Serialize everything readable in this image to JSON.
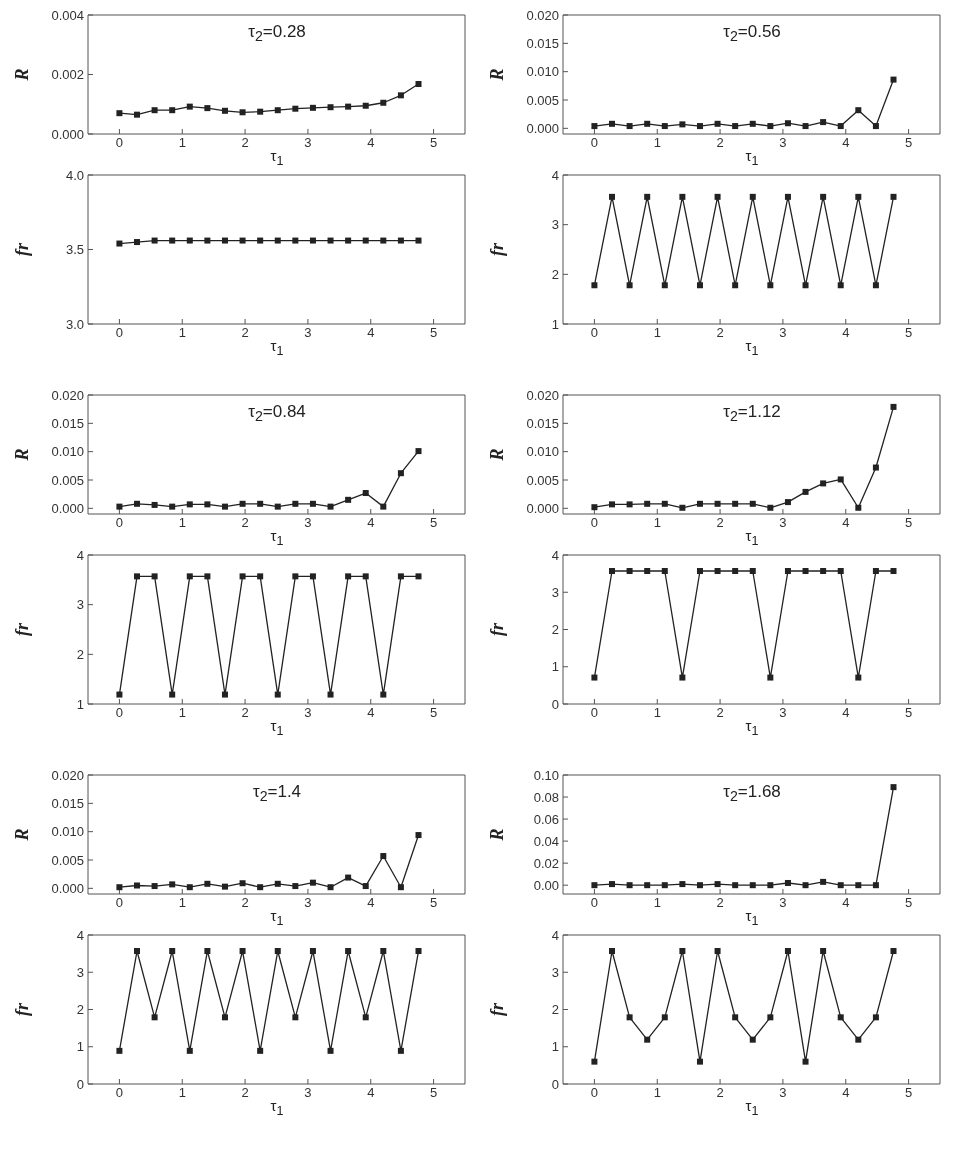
{
  "chart_data": [
    {
      "type": "line",
      "title": "τ$_{2}$=0.28",
      "xlabel": "τ$_{1}$",
      "ylabel": "R",
      "x": [
        0,
        0.28,
        0.56,
        0.84,
        1.12,
        1.4,
        1.68,
        1.96,
        2.24,
        2.52,
        2.8,
        3.08,
        3.36,
        3.64,
        3.92,
        4.2,
        4.48,
        4.76
      ],
      "values": [
        0.0007,
        0.00065,
        0.0008,
        0.0008,
        0.00092,
        0.00087,
        0.00078,
        0.00073,
        0.00075,
        0.0008,
        0.00085,
        0.00088,
        0.0009,
        0.00092,
        0.00095,
        0.00105,
        0.0013,
        0.00168
      ],
      "color": "#222222",
      "marker": "square",
      "line_style": "solid",
      "xlim": [
        -0.5,
        5.5
      ],
      "xticks": [
        0,
        1,
        2,
        3,
        4,
        5
      ],
      "ylim": [
        0,
        0.004
      ],
      "yticks": [
        {
          "value": 0,
          "label": "0.000"
        },
        {
          "value": 0.002,
          "label": "0.002"
        },
        {
          "value": 0.004,
          "label": "0.004"
        }
      ]
    },
    {
      "type": "line",
      "title": "τ$_{2}$=0.56",
      "xlabel": "τ$_{1}$",
      "ylabel": "R",
      "x": [
        0,
        0.28,
        0.56,
        0.84,
        1.12,
        1.4,
        1.68,
        1.96,
        2.24,
        2.52,
        2.8,
        3.08,
        3.36,
        3.64,
        3.92,
        4.2,
        4.48,
        4.76
      ],
      "values": [
        0.0004,
        0.0008,
        0.0004,
        0.0008,
        0.0004,
        0.0007,
        0.0004,
        0.0008,
        0.0004,
        0.0008,
        0.0004,
        0.0009,
        0.0004,
        0.0011,
        0.0004,
        0.0032,
        0.0004,
        0.0086
      ],
      "color": "#222222",
      "marker": "square",
      "line_style": "solid",
      "xlim": [
        -0.5,
        5.5
      ],
      "xticks": [
        0,
        1,
        2,
        3,
        4,
        5
      ],
      "ylim": [
        -0.001,
        0.02
      ],
      "yticks": [
        {
          "value": 0,
          "label": "0.000"
        },
        {
          "value": 0.005,
          "label": "0.005"
        },
        {
          "value": 0.01,
          "label": "0.010"
        },
        {
          "value": 0.015,
          "label": "0.015"
        },
        {
          "value": 0.02,
          "label": "0.020"
        }
      ]
    },
    {
      "type": "line",
      "xlabel": "τ$_{1}$",
      "ylabel": "fr",
      "x": [
        0,
        0.28,
        0.56,
        0.84,
        1.12,
        1.4,
        1.68,
        1.96,
        2.24,
        2.52,
        2.8,
        3.08,
        3.36,
        3.64,
        3.92,
        4.2,
        4.48,
        4.76
      ],
      "values": [
        3.54,
        3.55,
        3.56,
        3.56,
        3.56,
        3.56,
        3.56,
        3.56,
        3.56,
        3.56,
        3.56,
        3.56,
        3.56,
        3.56,
        3.56,
        3.56,
        3.56,
        3.56
      ],
      "color": "#222222",
      "marker": "square",
      "line_style": "solid",
      "xlim": [
        -0.5,
        5.5
      ],
      "xticks": [
        0,
        1,
        2,
        3,
        4,
        5
      ],
      "ylim": [
        3,
        4
      ],
      "yticks": [
        {
          "value": 3,
          "label": "3.0"
        },
        {
          "value": 3.5,
          "label": "3.5"
        },
        {
          "value": 4,
          "label": "4.0"
        }
      ]
    },
    {
      "type": "line",
      "xlabel": "τ$_{1}$",
      "ylabel": "fr",
      "x": [
        0,
        0.28,
        0.56,
        0.84,
        1.12,
        1.4,
        1.68,
        1.96,
        2.24,
        2.52,
        2.8,
        3.08,
        3.36,
        3.64,
        3.92,
        4.2,
        4.48,
        4.76
      ],
      "values": [
        1.78,
        3.56,
        1.78,
        3.56,
        1.78,
        3.56,
        1.78,
        3.56,
        1.78,
        3.56,
        1.78,
        3.56,
        1.78,
        3.56,
        1.78,
        3.56,
        1.78,
        3.56
      ],
      "color": "#222222",
      "marker": "square",
      "line_style": "solid",
      "xlim": [
        -0.5,
        5.5
      ],
      "xticks": [
        0,
        1,
        2,
        3,
        4,
        5
      ],
      "ylim": [
        1,
        4
      ],
      "yticks": [
        1,
        2,
        3,
        4
      ]
    },
    {
      "type": "line",
      "title": "τ$_{2}$=0.84",
      "xlabel": "τ$_{1}$",
      "ylabel": "R",
      "x": [
        0,
        0.28,
        0.56,
        0.84,
        1.12,
        1.4,
        1.68,
        1.96,
        2.24,
        2.52,
        2.8,
        3.08,
        3.36,
        3.64,
        3.92,
        4.2,
        4.48,
        4.76
      ],
      "values": [
        0.0003,
        0.0008,
        0.0006,
        0.0003,
        0.0007,
        0.0007,
        0.0003,
        0.0008,
        0.0008,
        0.0003,
        0.0008,
        0.0008,
        0.0003,
        0.0015,
        0.0027,
        0.0003,
        0.0062,
        0.0101
      ],
      "color": "#222222",
      "marker": "square",
      "line_style": "solid",
      "xlim": [
        -0.5,
        5.5
      ],
      "xticks": [
        0,
        1,
        2,
        3,
        4,
        5
      ],
      "ylim": [
        -0.001,
        0.02
      ],
      "yticks": [
        {
          "value": 0,
          "label": "0.000"
        },
        {
          "value": 0.005,
          "label": "0.005"
        },
        {
          "value": 0.01,
          "label": "0.010"
        },
        {
          "value": 0.015,
          "label": "0.015"
        },
        {
          "value": 0.02,
          "label": "0.020"
        }
      ]
    },
    {
      "type": "line",
      "title": "τ$_{2}$=1.12",
      "xlabel": "τ$_{1}$",
      "ylabel": "R",
      "x": [
        0,
        0.28,
        0.56,
        0.84,
        1.12,
        1.4,
        1.68,
        1.96,
        2.24,
        2.52,
        2.8,
        3.08,
        3.36,
        3.64,
        3.92,
        4.2,
        4.48,
        4.76
      ],
      "values": [
        0.0002,
        0.0007,
        0.0007,
        0.0008,
        0.0008,
        0.0001,
        0.0008,
        0.0008,
        0.0008,
        0.0008,
        0.0001,
        0.0011,
        0.0029,
        0.0044,
        0.0051,
        0.0001,
        0.0072,
        0.0179
      ],
      "color": "#222222",
      "marker": "square",
      "line_style": "solid",
      "xlim": [
        -0.5,
        5.5
      ],
      "xticks": [
        0,
        1,
        2,
        3,
        4,
        5
      ],
      "ylim": [
        -0.001,
        0.02
      ],
      "yticks": [
        {
          "value": 0,
          "label": "0.000"
        },
        {
          "value": 0.005,
          "label": "0.005"
        },
        {
          "value": 0.01,
          "label": "0.010"
        },
        {
          "value": 0.015,
          "label": "0.015"
        },
        {
          "value": 0.02,
          "label": "0.020"
        }
      ]
    },
    {
      "type": "line",
      "xlabel": "τ$_{1}$",
      "ylabel": "fr",
      "x": [
        0,
        0.28,
        0.56,
        0.84,
        1.12,
        1.4,
        1.68,
        1.96,
        2.24,
        2.52,
        2.8,
        3.08,
        3.36,
        3.64,
        3.92,
        4.2,
        4.48,
        4.76
      ],
      "values": [
        1.19,
        3.57,
        3.57,
        1.19,
        3.57,
        3.57,
        1.19,
        3.57,
        3.57,
        1.19,
        3.57,
        3.57,
        1.19,
        3.57,
        3.57,
        1.19,
        3.57,
        3.57
      ],
      "color": "#222222",
      "marker": "square",
      "line_style": "solid",
      "xlim": [
        -0.5,
        5.5
      ],
      "xticks": [
        0,
        1,
        2,
        3,
        4,
        5
      ],
      "ylim": [
        1,
        4
      ],
      "yticks": [
        1,
        2,
        3,
        4
      ]
    },
    {
      "type": "line",
      "xlabel": "τ$_{1}$",
      "ylabel": "fr",
      "x": [
        0,
        0.28,
        0.56,
        0.84,
        1.12,
        1.4,
        1.68,
        1.96,
        2.24,
        2.52,
        2.8,
        3.08,
        3.36,
        3.64,
        3.92,
        4.2,
        4.48,
        4.76
      ],
      "values": [
        0.71,
        3.57,
        3.57,
        3.57,
        3.57,
        0.71,
        3.57,
        3.57,
        3.57,
        3.57,
        0.71,
        3.57,
        3.57,
        3.57,
        3.57,
        0.71,
        3.57,
        3.57
      ],
      "color": "#222222",
      "marker": "square",
      "line_style": "solid",
      "xlim": [
        -0.5,
        5.5
      ],
      "xticks": [
        0,
        1,
        2,
        3,
        4,
        5
      ],
      "ylim": [
        0,
        4
      ],
      "yticks": [
        0,
        1,
        2,
        3,
        4
      ]
    },
    {
      "type": "line",
      "title": "τ$_{2}$=1.4",
      "xlabel": "τ$_{1}$",
      "ylabel": "R",
      "x": [
        0,
        0.28,
        0.56,
        0.84,
        1.12,
        1.4,
        1.68,
        1.96,
        2.24,
        2.52,
        2.8,
        3.08,
        3.36,
        3.64,
        3.92,
        4.2,
        4.48,
        4.76
      ],
      "values": [
        0.0002,
        0.0005,
        0.0004,
        0.0007,
        0.0002,
        0.0008,
        0.0003,
        0.0009,
        0.0002,
        0.0008,
        0.0004,
        0.001,
        0.0002,
        0.0019,
        0.0004,
        0.0057,
        0.0002,
        0.0094
      ],
      "color": "#222222",
      "marker": "square",
      "line_style": "solid",
      "xlim": [
        -0.5,
        5.5
      ],
      "xticks": [
        0,
        1,
        2,
        3,
        4,
        5
      ],
      "ylim": [
        -0.001,
        0.02
      ],
      "yticks": [
        {
          "value": 0,
          "label": "0.000"
        },
        {
          "value": 0.005,
          "label": "0.005"
        },
        {
          "value": 0.01,
          "label": "0.010"
        },
        {
          "value": 0.015,
          "label": "0.015"
        },
        {
          "value": 0.02,
          "label": "0.020"
        }
      ]
    },
    {
      "type": "line",
      "title": "τ$_{2}$=1.68",
      "xlabel": "τ$_{1}$",
      "ylabel": "R",
      "x": [
        0,
        0.28,
        0.56,
        0.84,
        1.12,
        1.4,
        1.68,
        1.96,
        2.24,
        2.52,
        2.8,
        3.08,
        3.36,
        3.64,
        3.92,
        4.2,
        4.48,
        4.76
      ],
      "values": [
        0,
        0.001,
        0,
        0,
        0,
        0.001,
        0,
        0.001,
        0,
        0,
        0,
        0.002,
        0,
        0.003,
        0,
        0,
        0,
        0.089
      ],
      "color": "#222222",
      "marker": "square",
      "line_style": "solid",
      "xlim": [
        -0.5,
        5.5
      ],
      "xticks": [
        0,
        1,
        2,
        3,
        4,
        5
      ],
      "ylim": [
        -0.008,
        0.1
      ],
      "yticks": [
        {
          "value": 0,
          "label": "0.00"
        },
        {
          "value": 0.02,
          "label": "0.02"
        },
        {
          "value": 0.04,
          "label": "0.04"
        },
        {
          "value": 0.06,
          "label": "0.06"
        },
        {
          "value": 0.08,
          "label": "0.08"
        },
        {
          "value": 0.1,
          "label": "0.10"
        }
      ]
    },
    {
      "type": "line",
      "xlabel": "τ$_{1}$",
      "ylabel": "fr",
      "x": [
        0,
        0.28,
        0.56,
        0.84,
        1.12,
        1.4,
        1.68,
        1.96,
        2.24,
        2.52,
        2.8,
        3.08,
        3.36,
        3.64,
        3.92,
        4.2,
        4.48,
        4.76
      ],
      "values": [
        0.89,
        3.57,
        1.79,
        3.57,
        0.89,
        3.57,
        1.79,
        3.57,
        0.89,
        3.57,
        1.79,
        3.57,
        0.89,
        3.57,
        1.79,
        3.57,
        0.89,
        3.57
      ],
      "color": "#222222",
      "marker": "square",
      "line_style": "solid",
      "xlim": [
        -0.5,
        5.5
      ],
      "xticks": [
        0,
        1,
        2,
        3,
        4,
        5
      ],
      "ylim": [
        0,
        4
      ],
      "yticks": [
        0,
        1,
        2,
        3,
        4
      ]
    },
    {
      "type": "line",
      "xlabel": "τ$_{1}$",
      "ylabel": "fr",
      "x": [
        0,
        0.28,
        0.56,
        0.84,
        1.12,
        1.4,
        1.68,
        1.96,
        2.24,
        2.52,
        2.8,
        3.08,
        3.36,
        3.64,
        3.92,
        4.2,
        4.48,
        4.76
      ],
      "values": [
        0.6,
        3.57,
        1.79,
        1.19,
        1.79,
        3.57,
        0.6,
        3.57,
        1.79,
        1.19,
        1.79,
        3.57,
        0.6,
        3.57,
        1.79,
        1.19,
        1.79,
        3.57
      ],
      "color": "#222222",
      "marker": "square",
      "line_style": "solid",
      "xlim": [
        -0.5,
        5.5
      ],
      "xticks": [
        0,
        1,
        2,
        3,
        4,
        5
      ],
      "ylim": [
        0,
        4
      ],
      "yticks": [
        0,
        1,
        2,
        3,
        4
      ]
    }
  ]
}
